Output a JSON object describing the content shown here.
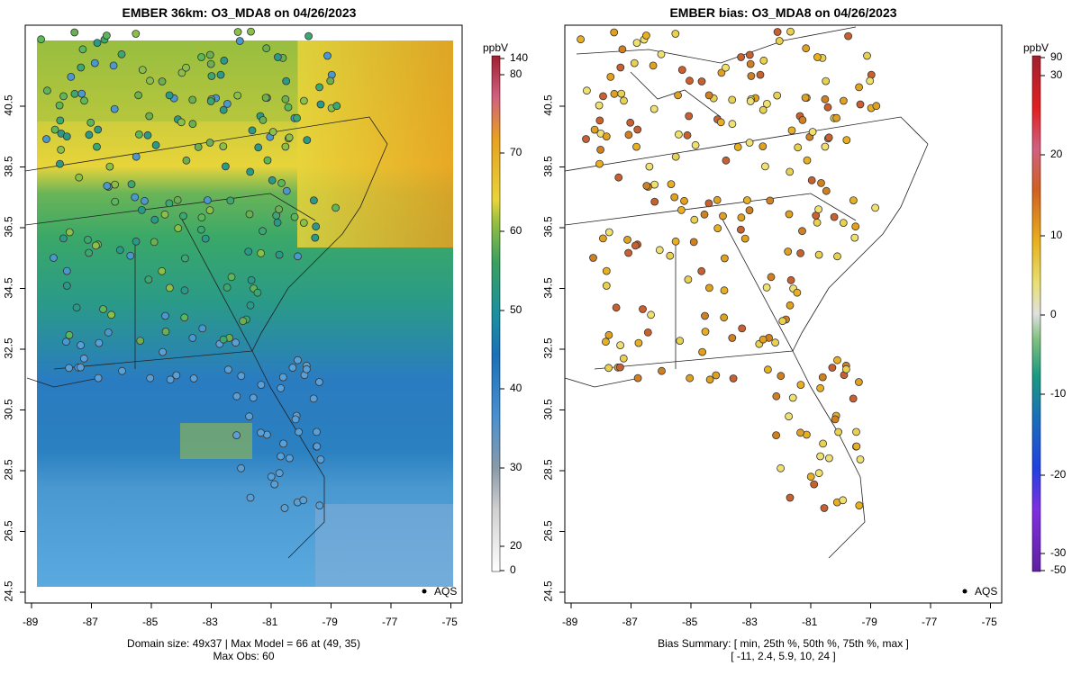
{
  "left_panel": {
    "title": "EMBER 36km: O3_MDA8 on 04/26/2023",
    "unit": "ppbV",
    "colorbar_ticks": [
      "0",
      "20",
      "30",
      "40",
      "50",
      "60",
      "70",
      "80",
      "140"
    ],
    "footer_line1": "Domain size: 49x37 | Max Model = 66 at (49, 35)",
    "footer_line2": "Max Obs: 60",
    "legend_label": "AQS"
  },
  "right_panel": {
    "title": "EMBER bias: O3_MDA8 on 04/26/2023",
    "unit": "ppbV",
    "colorbar_ticks": [
      "-50",
      "-30",
      "-20",
      "-10",
      "0",
      "10",
      "20",
      "30",
      "90"
    ],
    "footer_line1": "Bias Summary: [ min, 25th %, 50th %, 75th %, max ]",
    "footer_line2": "[ -11,   2.4,   5.9,   10,   24 ]",
    "legend_label": "AQS"
  },
  "axes": {
    "x_ticks": [
      "-89",
      "-87",
      "-85",
      "-83",
      "-81",
      "-79",
      "-77",
      "-75"
    ],
    "y_ticks": [
      "24.5",
      "26.5",
      "28.5",
      "30.5",
      "32.5",
      "34.5",
      "36.5",
      "38.5",
      "40.5"
    ]
  },
  "colors": {
    "model_high": "#e8a020",
    "model_mid": "#e8d43a",
    "model_green": "#3aa860",
    "model_blue": "#2a7cc0",
    "model_light_blue": "#5aaae0",
    "bias_positive": "#e0a020",
    "bias_strong": "#c84a30",
    "bias_neutral": "#f0f0d0"
  }
}
